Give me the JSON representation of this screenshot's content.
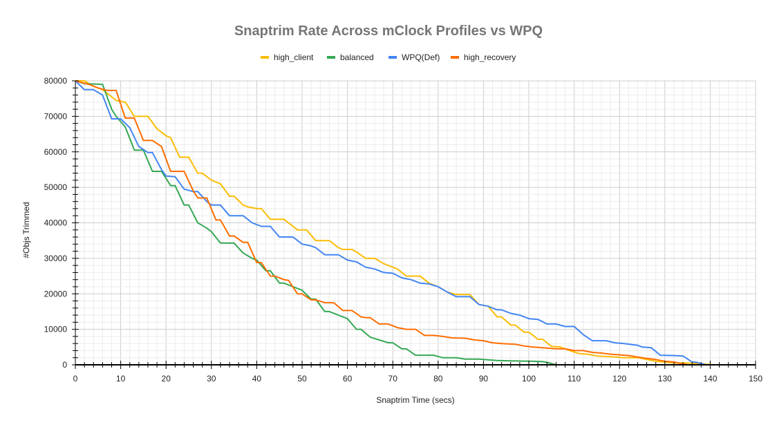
{
  "chart_data": {
    "type": "line",
    "title": "Snaptrim Rate Across mClock Profiles vs WPQ",
    "xlabel": "Snaptrim Time (secs)",
    "ylabel": "#Objs Trimmed",
    "xlim": [
      0,
      150
    ],
    "ylim": [
      0,
      80000
    ],
    "x_ticks": [
      "0",
      "10",
      "20",
      "30",
      "40",
      "50",
      "60",
      "70",
      "80",
      "90",
      "100",
      "110",
      "120",
      "130",
      "140",
      "150"
    ],
    "y_ticks": [
      "0",
      "10000",
      "20000",
      "30000",
      "40000",
      "50000",
      "60000",
      "70000",
      "80000"
    ],
    "grid": true,
    "legend_position": "top",
    "series": [
      {
        "name": "high_client",
        "color": "#fbbc04",
        "points": [
          [
            0,
            80000
          ],
          [
            2,
            80000
          ],
          [
            4,
            78500
          ],
          [
            6,
            77500
          ],
          [
            8,
            75500
          ],
          [
            9,
            74500
          ],
          [
            11,
            74000
          ],
          [
            13,
            70000
          ],
          [
            16,
            70000
          ],
          [
            18,
            66500
          ],
          [
            20,
            64500
          ],
          [
            21,
            64000
          ],
          [
            23,
            58500
          ],
          [
            25,
            58500
          ],
          [
            27,
            54000
          ],
          [
            28,
            54000
          ],
          [
            30,
            52000
          ],
          [
            32,
            51000
          ],
          [
            34,
            47500
          ],
          [
            35,
            47500
          ],
          [
            37,
            45000
          ],
          [
            38,
            44500
          ],
          [
            40,
            44000
          ],
          [
            41,
            44000
          ],
          [
            43,
            41000
          ],
          [
            46,
            41000
          ],
          [
            48,
            39000
          ],
          [
            49,
            38000
          ],
          [
            51,
            38000
          ],
          [
            53,
            35000
          ],
          [
            56,
            35000
          ],
          [
            58,
            33000
          ],
          [
            59,
            32500
          ],
          [
            61,
            32500
          ],
          [
            62,
            31800
          ],
          [
            64,
            30000
          ],
          [
            66,
            30000
          ],
          [
            68,
            28500
          ],
          [
            70,
            27500
          ],
          [
            71,
            27000
          ],
          [
            73,
            25000
          ],
          [
            76,
            25000
          ],
          [
            78,
            23000
          ],
          [
            80,
            22000
          ],
          [
            82,
            20500
          ],
          [
            84,
            19800
          ],
          [
            87,
            19800
          ],
          [
            89,
            17000
          ],
          [
            91,
            16500
          ],
          [
            93,
            13500
          ],
          [
            94,
            13500
          ],
          [
            96,
            11200
          ],
          [
            97,
            11200
          ],
          [
            99,
            9200
          ],
          [
            100,
            9200
          ],
          [
            102,
            7200
          ],
          [
            103,
            7200
          ],
          [
            105,
            5200
          ],
          [
            107,
            5000
          ],
          [
            109,
            4000
          ],
          [
            111,
            3200
          ],
          [
            113,
            3000
          ],
          [
            115,
            2500
          ],
          [
            118,
            2300
          ],
          [
            121,
            2000
          ],
          [
            124,
            2000
          ],
          [
            126,
            1500
          ],
          [
            128,
            1000
          ],
          [
            132,
            500
          ],
          [
            135,
            500
          ],
          [
            138,
            300
          ],
          [
            141,
            0
          ]
        ]
      },
      {
        "name": "balanced",
        "color": "#34a853",
        "points": [
          [
            0,
            80000
          ],
          [
            2,
            79200
          ],
          [
            6,
            79000
          ],
          [
            8,
            72000
          ],
          [
            9,
            70000
          ],
          [
            11,
            67000
          ],
          [
            13,
            60500
          ],
          [
            15,
            60500
          ],
          [
            17,
            54500
          ],
          [
            19,
            54500
          ],
          [
            21,
            50500
          ],
          [
            22,
            50500
          ],
          [
            24,
            45000
          ],
          [
            25,
            45000
          ],
          [
            27,
            40000
          ],
          [
            29,
            38500
          ],
          [
            30,
            37500
          ],
          [
            32,
            34300
          ],
          [
            35,
            34300
          ],
          [
            37,
            31500
          ],
          [
            39,
            30000
          ],
          [
            40,
            29500
          ],
          [
            42,
            26500
          ],
          [
            43,
            26500
          ],
          [
            45,
            23000
          ],
          [
            46,
            23000
          ],
          [
            48,
            22000
          ],
          [
            50,
            21000
          ],
          [
            52,
            18500
          ],
          [
            53,
            18500
          ],
          [
            55,
            15000
          ],
          [
            56,
            15000
          ],
          [
            58,
            14000
          ],
          [
            60,
            13000
          ],
          [
            62,
            10000
          ],
          [
            63,
            10000
          ],
          [
            65,
            7800
          ],
          [
            67,
            7000
          ],
          [
            69,
            6200
          ],
          [
            70,
            6200
          ],
          [
            72,
            4500
          ],
          [
            73,
            4500
          ],
          [
            75,
            2700
          ],
          [
            79,
            2700
          ],
          [
            81,
            2000
          ],
          [
            84,
            2000
          ],
          [
            86,
            1600
          ],
          [
            89,
            1600
          ],
          [
            91,
            1400
          ],
          [
            93,
            1200
          ],
          [
            96,
            1100
          ],
          [
            101,
            1000
          ],
          [
            103,
            900
          ],
          [
            104,
            700
          ],
          [
            106,
            0
          ]
        ]
      },
      {
        "name": "WPQ(Def)",
        "color": "#4285f4",
        "points": [
          [
            0,
            80000
          ],
          [
            2,
            77500
          ],
          [
            4,
            77500
          ],
          [
            6,
            76000
          ],
          [
            8,
            69300
          ],
          [
            10,
            69300
          ],
          [
            12,
            66800
          ],
          [
            14,
            61500
          ],
          [
            16,
            59800
          ],
          [
            17,
            59800
          ],
          [
            19,
            55000
          ],
          [
            20,
            53200
          ],
          [
            22,
            53000
          ],
          [
            24,
            49500
          ],
          [
            26,
            48800
          ],
          [
            27,
            48800
          ],
          [
            29,
            46000
          ],
          [
            30,
            45000
          ],
          [
            32,
            45000
          ],
          [
            34,
            42000
          ],
          [
            37,
            42000
          ],
          [
            39,
            40000
          ],
          [
            41,
            39000
          ],
          [
            43,
            39000
          ],
          [
            45,
            36000
          ],
          [
            48,
            36000
          ],
          [
            50,
            34000
          ],
          [
            52,
            33500
          ],
          [
            53,
            33000
          ],
          [
            55,
            31000
          ],
          [
            58,
            31000
          ],
          [
            60,
            29500
          ],
          [
            62,
            29000
          ],
          [
            64,
            27500
          ],
          [
            66,
            27000
          ],
          [
            68,
            26000
          ],
          [
            70,
            25800
          ],
          [
            72,
            24500
          ],
          [
            74,
            24000
          ],
          [
            76,
            23000
          ],
          [
            78,
            22800
          ],
          [
            80,
            22000
          ],
          [
            82,
            20500
          ],
          [
            84,
            19200
          ],
          [
            87,
            19200
          ],
          [
            89,
            17000
          ],
          [
            91,
            16500
          ],
          [
            93,
            15500
          ],
          [
            94,
            15500
          ],
          [
            96,
            14500
          ],
          [
            98,
            14000
          ],
          [
            100,
            13000
          ],
          [
            102,
            12800
          ],
          [
            104,
            11500
          ],
          [
            106,
            11500
          ],
          [
            108,
            10800
          ],
          [
            110,
            10800
          ],
          [
            112,
            8500
          ],
          [
            114,
            6800
          ],
          [
            117,
            6800
          ],
          [
            119,
            6200
          ],
          [
            121,
            6000
          ],
          [
            124,
            5500
          ],
          [
            125,
            5000
          ],
          [
            127,
            4800
          ],
          [
            129,
            2700
          ],
          [
            132,
            2600
          ],
          [
            134,
            2500
          ],
          [
            136,
            800
          ],
          [
            137,
            700
          ],
          [
            139,
            0
          ]
        ]
      },
      {
        "name": "high_recovery",
        "color": "#ff6d01",
        "points": [
          [
            0,
            80000
          ],
          [
            3,
            79000
          ],
          [
            5,
            78000
          ],
          [
            7,
            77300
          ],
          [
            9,
            77300
          ],
          [
            11,
            69500
          ],
          [
            13,
            69500
          ],
          [
            15,
            63200
          ],
          [
            17,
            63200
          ],
          [
            19,
            61500
          ],
          [
            21,
            54500
          ],
          [
            24,
            54500
          ],
          [
            26,
            49000
          ],
          [
            27,
            47000
          ],
          [
            29,
            47000
          ],
          [
            31,
            40800
          ],
          [
            32,
            40800
          ],
          [
            34,
            36300
          ],
          [
            35,
            36300
          ],
          [
            37,
            34500
          ],
          [
            38,
            34500
          ],
          [
            40,
            28800
          ],
          [
            41,
            28800
          ],
          [
            43,
            25000
          ],
          [
            44,
            25000
          ],
          [
            46,
            24000
          ],
          [
            47,
            23800
          ],
          [
            49,
            20000
          ],
          [
            50,
            20000
          ],
          [
            52,
            18300
          ],
          [
            53,
            18300
          ],
          [
            55,
            17500
          ],
          [
            57,
            17500
          ],
          [
            59,
            15300
          ],
          [
            61,
            15300
          ],
          [
            63,
            13500
          ],
          [
            64,
            13300
          ],
          [
            65,
            13300
          ],
          [
            67,
            11500
          ],
          [
            69,
            11500
          ],
          [
            71,
            10500
          ],
          [
            73,
            10000
          ],
          [
            75,
            10000
          ],
          [
            77,
            8300
          ],
          [
            79,
            8300
          ],
          [
            81,
            8000
          ],
          [
            83,
            7600
          ],
          [
            86,
            7500
          ],
          [
            88,
            7000
          ],
          [
            90,
            6800
          ],
          [
            92,
            6200
          ],
          [
            94,
            6000
          ],
          [
            97,
            5800
          ],
          [
            99,
            5300
          ],
          [
            101,
            5000
          ],
          [
            103,
            4800
          ],
          [
            106,
            4500
          ],
          [
            108,
            4500
          ],
          [
            110,
            4000
          ],
          [
            112,
            4000
          ],
          [
            114,
            3500
          ],
          [
            116,
            3300
          ],
          [
            118,
            3000
          ],
          [
            120,
            2800
          ],
          [
            122,
            2600
          ],
          [
            124,
            2200
          ],
          [
            126,
            1800
          ],
          [
            128,
            1500
          ],
          [
            130,
            1000
          ],
          [
            132,
            800
          ],
          [
            133,
            500
          ],
          [
            135,
            0
          ]
        ]
      }
    ]
  }
}
